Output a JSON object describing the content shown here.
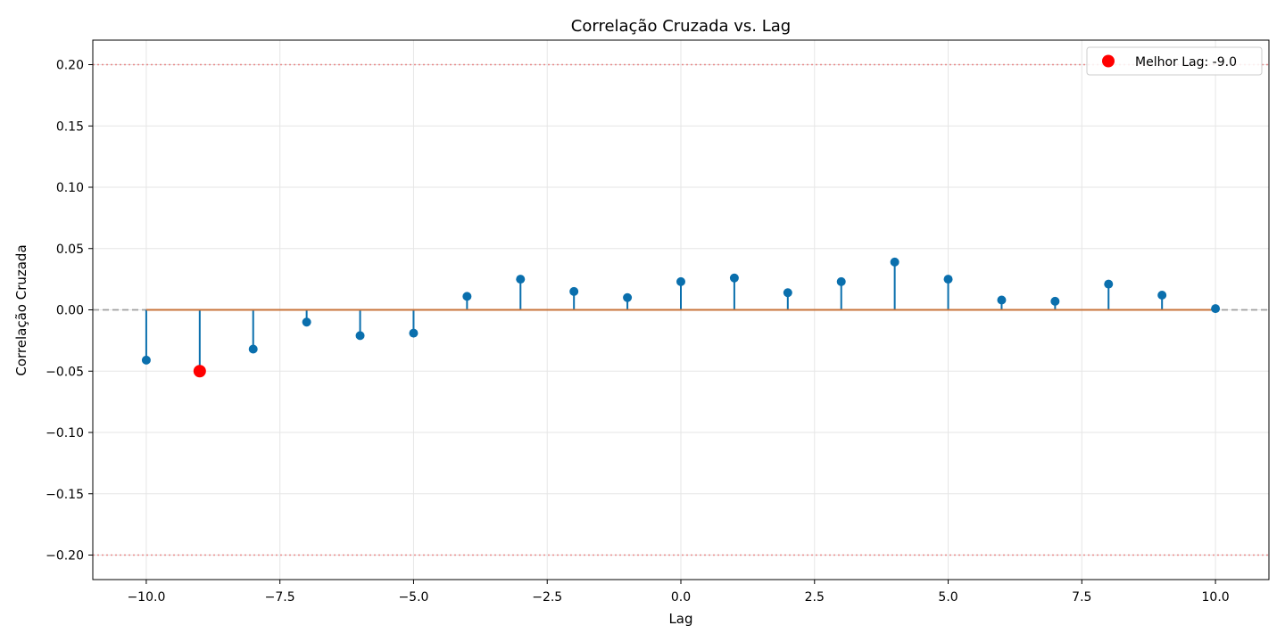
{
  "chart_data": {
    "type": "stem",
    "title": "Correlação Cruzada vs. Lag",
    "xlabel": "Lag",
    "ylabel": "Correlação Cruzada",
    "xlim": [
      -11,
      11
    ],
    "ylim": [
      -0.22,
      0.22
    ],
    "xticks": [
      -10.0,
      -7.5,
      -5.0,
      -2.5,
      0.0,
      2.5,
      5.0,
      7.5,
      10.0
    ],
    "xtick_labels": [
      "−10.0",
      "−7.5",
      "−5.0",
      "−2.5",
      "0.0",
      "2.5",
      "5.0",
      "7.5",
      "10.0"
    ],
    "yticks": [
      0.2,
      0.15,
      0.1,
      0.05,
      0.0,
      -0.05,
      -0.1,
      -0.15,
      -0.2
    ],
    "ytick_labels": [
      "0.20",
      "0.15",
      "0.10",
      "0.05",
      "0.00",
      "−0.05",
      "−0.10",
      "−0.15",
      "−0.20"
    ],
    "grid": true,
    "legend_position": "top-right",
    "x": [
      -10,
      -9,
      -8,
      -7,
      -6,
      -5,
      -4,
      -3,
      -2,
      -1,
      0,
      1,
      2,
      3,
      4,
      5,
      6,
      7,
      8,
      9,
      10
    ],
    "y": [
      -0.041,
      -0.05,
      -0.032,
      -0.01,
      -0.021,
      -0.019,
      0.011,
      0.025,
      0.015,
      0.01,
      0.023,
      0.026,
      0.014,
      0.023,
      0.039,
      0.025,
      0.008,
      0.007,
      0.021,
      0.012,
      0.001
    ],
    "best_lag": {
      "x": -9,
      "y": -0.05,
      "label": "Melhor Lag: -9.0"
    },
    "reference_lines": {
      "zero": 0.0,
      "significance": [
        0.2,
        -0.2
      ]
    },
    "colors": {
      "stem": "#0a6fad",
      "baseline": "#c8733a",
      "best": "#ff0000",
      "zero_line": "#a0a0a0",
      "significance_line": "#e88a8a",
      "grid": "#e6e6e6"
    }
  }
}
